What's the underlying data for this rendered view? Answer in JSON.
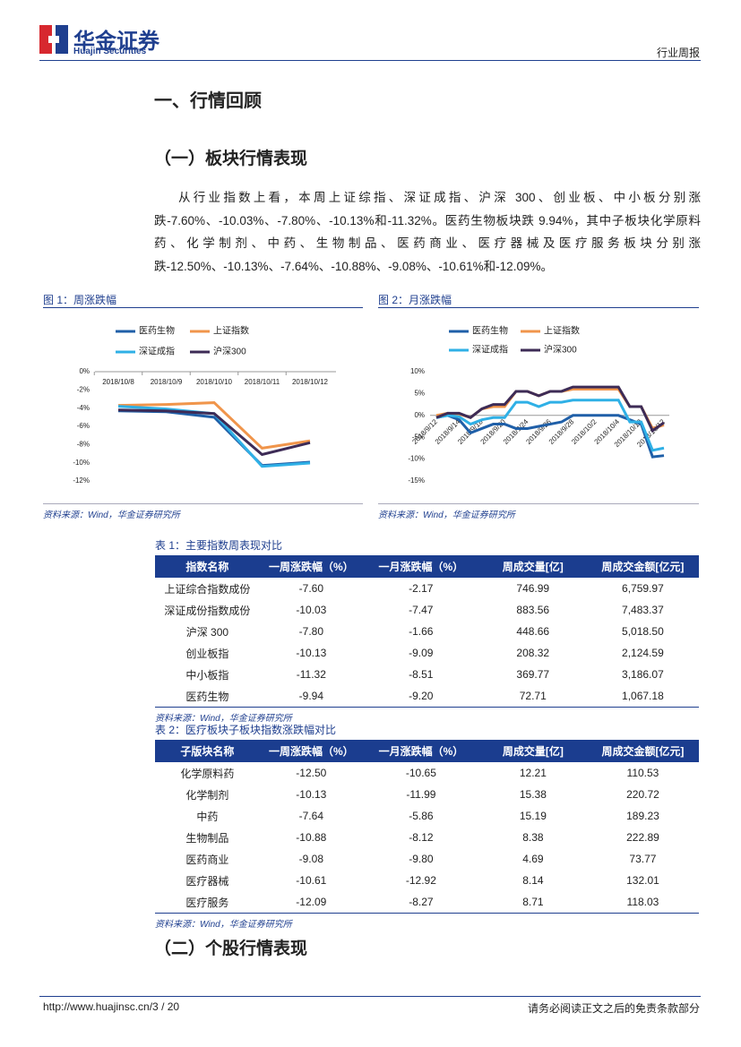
{
  "header": {
    "logo_cn": "华金证券",
    "logo_en": "Huajin Securities",
    "report_type": "行业周报"
  },
  "section_title": "一、行情回顾",
  "subsection_title": "（一）板块行情表现",
  "paragraph": "从行业指数上看，本周上证综指、深证成指、沪深 300、创业板、中小板分别涨跌-7.60%、-10.03%、-7.80%、-10.13%和-11.32%。医药生物板块跌 9.94%，其中子板块化学原料药、化学制剂、中药、生物制品、医药商业、医疗器械及医疗服务板块分别涨跌-12.50%、-10.13%、-7.64%、-10.88%、-9.08%、-10.61%和-12.09%。",
  "figures": [
    {
      "caption": "图 1：周涨跌幅",
      "source": "资料来源：Wind，华金证券研究所"
    },
    {
      "caption": "图 2：月涨跌幅",
      "source": "资料来源：Wind，华金证券研究所"
    }
  ],
  "chart_data": [
    {
      "type": "line",
      "legend": "top",
      "grid": false,
      "categories": [
        "2018/10/8",
        "2018/10/9",
        "2018/10/10",
        "2018/10/11",
        "2018/10/12"
      ],
      "ylim": [
        -12,
        0
      ],
      "yticks": [
        {
          "value": 0,
          "label": "0%"
        },
        {
          "value": -2,
          "label": "-2%"
        },
        {
          "value": -4,
          "label": "-4%"
        },
        {
          "value": -6,
          "label": "-6%"
        },
        {
          "value": -8,
          "label": "-8%"
        },
        {
          "value": -10,
          "label": "-10%"
        },
        {
          "value": -12,
          "label": "-12%"
        }
      ],
      "series": [
        {
          "name": "医药生物",
          "color": "#1f5fa8",
          "values": [
            -4.3,
            -4.4,
            -5.0,
            -10.3,
            -9.94
          ]
        },
        {
          "name": "上证指数",
          "color": "#f0954b",
          "values": [
            -3.7,
            -3.6,
            -3.4,
            -8.4,
            -7.6
          ]
        },
        {
          "name": "深证成指",
          "color": "#2fb0e6",
          "values": [
            -3.8,
            -4.1,
            -4.6,
            -10.4,
            -10.03
          ]
        },
        {
          "name": "沪深300",
          "color": "#3d2b56",
          "values": [
            -4.2,
            -4.3,
            -4.6,
            -9.1,
            -7.8
          ]
        }
      ]
    },
    {
      "type": "line",
      "legend": "top",
      "grid": false,
      "categories": [
        "2018/9/12",
        null,
        "2018/9/14",
        null,
        "2018/9/18",
        null,
        "2018/9/20",
        null,
        "2018/9/24",
        null,
        "2018/9/26",
        null,
        "2018/9/28",
        null,
        "2018/10/2",
        null,
        "2018/10/4",
        null,
        "2018/10/10",
        null,
        "2018/10/12"
      ],
      "ylim": [
        -15,
        10
      ],
      "yticks": [
        {
          "value": 10,
          "label": "10%"
        },
        {
          "value": 5,
          "label": "5%"
        },
        {
          "value": 0,
          "label": "0%"
        },
        {
          "value": -5,
          "label": "-5%"
        },
        {
          "value": -10,
          "label": "-10%"
        },
        {
          "value": -15,
          "label": "-15%"
        }
      ],
      "series": [
        {
          "name": "医药生物",
          "color": "#1f5fa8",
          "values": [
            -0.5,
            0,
            -1,
            -4,
            -3,
            -2,
            -2,
            -3,
            -3,
            -2.5,
            -2,
            -1.5,
            0,
            0,
            0,
            0,
            0,
            -1,
            -2,
            -9.5,
            -9.2
          ]
        },
        {
          "name": "上证指数",
          "color": "#f0954b",
          "values": [
            0,
            0.5,
            0.3,
            -0.5,
            1.5,
            2,
            2,
            5.5,
            5.5,
            4.5,
            5.5,
            5.5,
            6,
            6,
            6,
            6,
            6,
            2,
            2,
            -3,
            -2.17
          ]
        },
        {
          "name": "深证成指",
          "color": "#2fb0e6",
          "values": [
            -0.5,
            0,
            -0.3,
            -2,
            -1,
            -0.5,
            -0.5,
            3,
            3,
            2,
            3,
            3,
            3.5,
            3.5,
            3.5,
            3.5,
            3.5,
            -1.5,
            -1.5,
            -8,
            -7.47
          ]
        },
        {
          "name": "沪深300",
          "color": "#3d2b56",
          "values": [
            -0.5,
            0.5,
            0.5,
            -0.5,
            1.5,
            2.5,
            2.5,
            5.5,
            5.5,
            4.5,
            5.5,
            5.5,
            6.5,
            6.5,
            6.5,
            6.5,
            6.5,
            2,
            2,
            -3.5,
            -1.66
          ]
        }
      ]
    }
  ],
  "tables": [
    {
      "title": "表 1：主要指数周表现对比",
      "columns": [
        "指数名称",
        "一周涨跌幅（%）",
        "一月涨跌幅（%）",
        "周成交量[亿]",
        "周成交金额[亿元]"
      ],
      "rows": [
        [
          "上证综合指数成份",
          "-7.60",
          "-2.17",
          "746.99",
          "6,759.97"
        ],
        [
          "深证成份指数成份",
          "-10.03",
          "-7.47",
          "883.56",
          "7,483.37"
        ],
        [
          "沪深 300",
          "-7.80",
          "-1.66",
          "448.66",
          "5,018.50"
        ],
        [
          "创业板指",
          "-10.13",
          "-9.09",
          "208.32",
          "2,124.59"
        ],
        [
          "中小板指",
          "-11.32",
          "-8.51",
          "369.77",
          "3,186.07"
        ],
        [
          "医药生物",
          "-9.94",
          "-9.20",
          "72.71",
          "1,067.18"
        ]
      ],
      "source": "资料来源：Wind，华金证券研究所"
    },
    {
      "title": "表 2：医疗板块子板块指数涨跌幅对比",
      "columns": [
        "子版块名称",
        "一周涨跌幅（%）",
        "一月涨跌幅（%）",
        "周成交量[亿]",
        "周成交金额[亿元]"
      ],
      "rows": [
        [
          "化学原料药",
          "-12.50",
          "-10.65",
          "12.21",
          "110.53"
        ],
        [
          "化学制剂",
          "-10.13",
          "-11.99",
          "15.38",
          "220.72"
        ],
        [
          "中药",
          "-7.64",
          "-5.86",
          "15.19",
          "189.23"
        ],
        [
          "生物制品",
          "-10.88",
          "-8.12",
          "8.38",
          "222.89"
        ],
        [
          "医药商业",
          "-9.08",
          "-9.80",
          "4.69",
          "73.77"
        ],
        [
          "医疗器械",
          "-10.61",
          "-12.92",
          "8.14",
          "132.01"
        ],
        [
          "医疗服务",
          "-12.09",
          "-8.27",
          "8.71",
          "118.03"
        ]
      ],
      "source": "资料来源：Wind，华金证券研究所"
    }
  ],
  "subsection2_title": "（二）个股行情表现",
  "footer": {
    "url": "http://www.huajinsc.cn/3 / 20",
    "disclaimer": "请务必阅读正文之后的免责条款部分"
  }
}
